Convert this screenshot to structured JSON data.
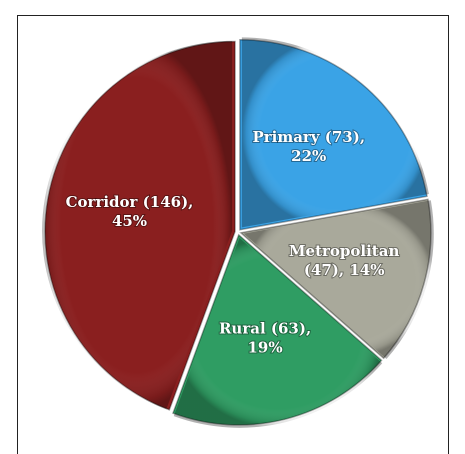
{
  "chart_data": {
    "type": "pie",
    "values": [
      73,
      47,
      63,
      146
    ],
    "value_labels": [
      [
        "Primary (73),",
        "22%"
      ],
      [
        "Metropolitan",
        "(47), 14%"
      ],
      [
        "Rural (63),",
        "19%"
      ],
      [
        "Corridor (146),",
        "45%"
      ]
    ],
    "colors": [
      "#3aa3e6",
      "#a9a99b",
      "#2f9d63",
      "#8a1f1f"
    ]
  }
}
